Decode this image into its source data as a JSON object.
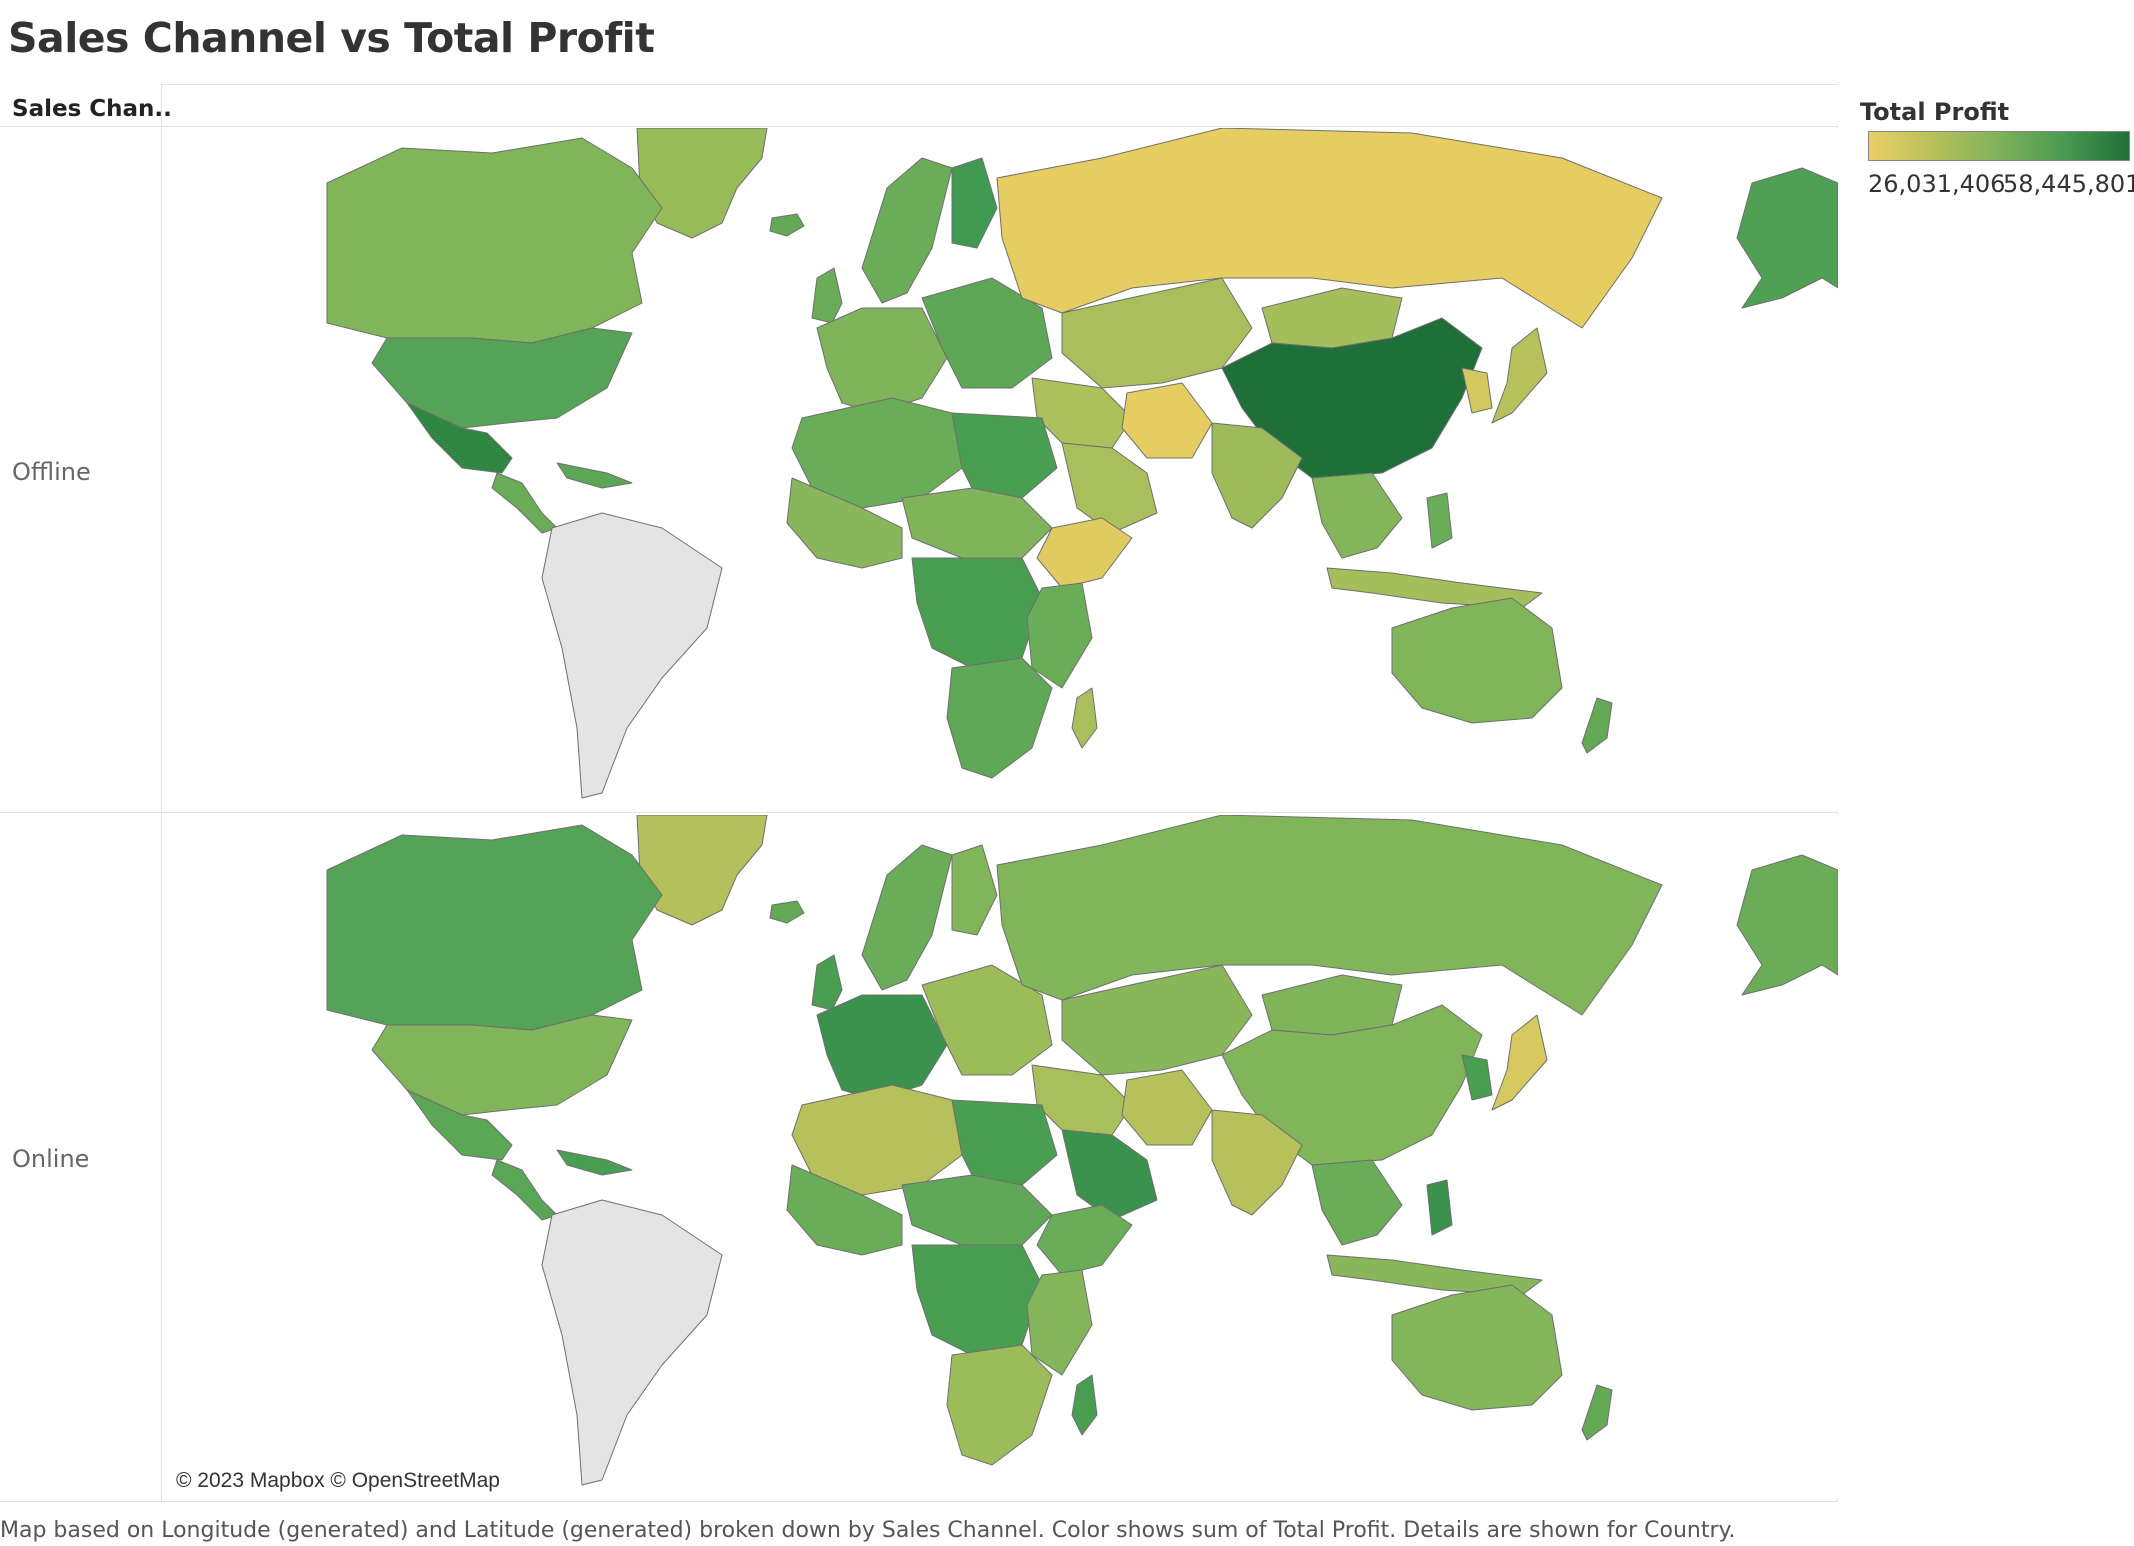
{
  "title": "Sales Channel vs Total Profit",
  "row_header": "Sales Chan..",
  "rows": [
    {
      "label": "Offline"
    },
    {
      "label": "Online"
    }
  ],
  "legend": {
    "title": "Total Profit",
    "min": "26,031,406",
    "max": "58,445,801",
    "color_low": "#e9cf66",
    "color_high": "#1f7038"
  },
  "attribution": "© 2023 Mapbox © OpenStreetMap",
  "caption": "Map based on Longitude (generated) and Latitude (generated) broken down by Sales Channel.  Color shows sum of Total Profit.  Details are shown for Country.",
  "colors": {
    "no_data": "#e4e4e4",
    "border": "#6f6f6f"
  },
  "map_panels": [
    {
      "channel": "Offline",
      "regions": {
        "canada": "#80b55a",
        "usa": "#55a356",
        "mexico": "#2f8741",
        "central_america": "#6aac58",
        "caribbean": "#5ca755",
        "greenland": "#98bb5a",
        "iceland": "#63a956",
        "uk": "#6aad58",
        "scandinavia": "#6aac58",
        "finland": "#3f9950",
        "western_europe": "#7fb45a",
        "eastern_europe": "#5ea757",
        "russia": "#e6cd62",
        "kazakhstan_central_asia": "#aabf5b",
        "mongolia": "#a3be5b",
        "china": "#1f7038",
        "japan": "#b7c15b",
        "korea": "#d3c960",
        "india": "#9dbb5a",
        "middle_east": "#acc05b",
        "iran": "#e6cd62",
        "arabia": "#a9bf5b",
        "north_africa": "#6aad58",
        "egypt_libya": "#4a9e52",
        "west_africa": "#89b65a",
        "sahel": "#7fb45a",
        "horn_africa": "#e0cb61",
        "central_africa": "#4a9e52",
        "east_africa": "#6aad58",
        "southern_africa": "#5fa857",
        "madagascar": "#a9bf5b",
        "southeast_asia": "#83b55a",
        "indonesia": "#a3be5b",
        "philippines": "#6aad58",
        "australia": "#80b55a",
        "new_zealand": "#63a956",
        "alaska": "#4fa054"
      }
    },
    {
      "channel": "Online",
      "regions": {
        "canada": "#55a356",
        "usa": "#80b55a",
        "mexico": "#5ca755",
        "central_america": "#5aa657",
        "caribbean": "#4a9e52",
        "greenland": "#b4c05b",
        "iceland": "#63a956",
        "uk": "#4a9e52",
        "scandinavia": "#6aac58",
        "finland": "#80b55a",
        "western_europe": "#3a924c",
        "eastern_europe": "#9cbc5a",
        "russia": "#80b55a",
        "kazakhstan_central_asia": "#8ab65a",
        "mongolia": "#7fb45a",
        "china": "#80b55a",
        "japan": "#d7c960",
        "korea": "#4a9e52",
        "india": "#b7c15b",
        "middle_east": "#a9bf5b",
        "iran": "#b7c15b",
        "arabia": "#3a924c",
        "north_africa": "#b7c15b",
        "egypt_libya": "#4a9e52",
        "west_africa": "#6aad58",
        "sahel": "#5fa857",
        "horn_africa": "#6aad58",
        "central_africa": "#4a9e52",
        "east_africa": "#83b55a",
        "southern_africa": "#9cbc5a",
        "madagascar": "#4a9e52",
        "southeast_asia": "#6aad58",
        "indonesia": "#89b65a",
        "philippines": "#3a924c",
        "australia": "#83b55a",
        "new_zealand": "#63a956",
        "alaska": "#6aac58"
      }
    }
  ]
}
